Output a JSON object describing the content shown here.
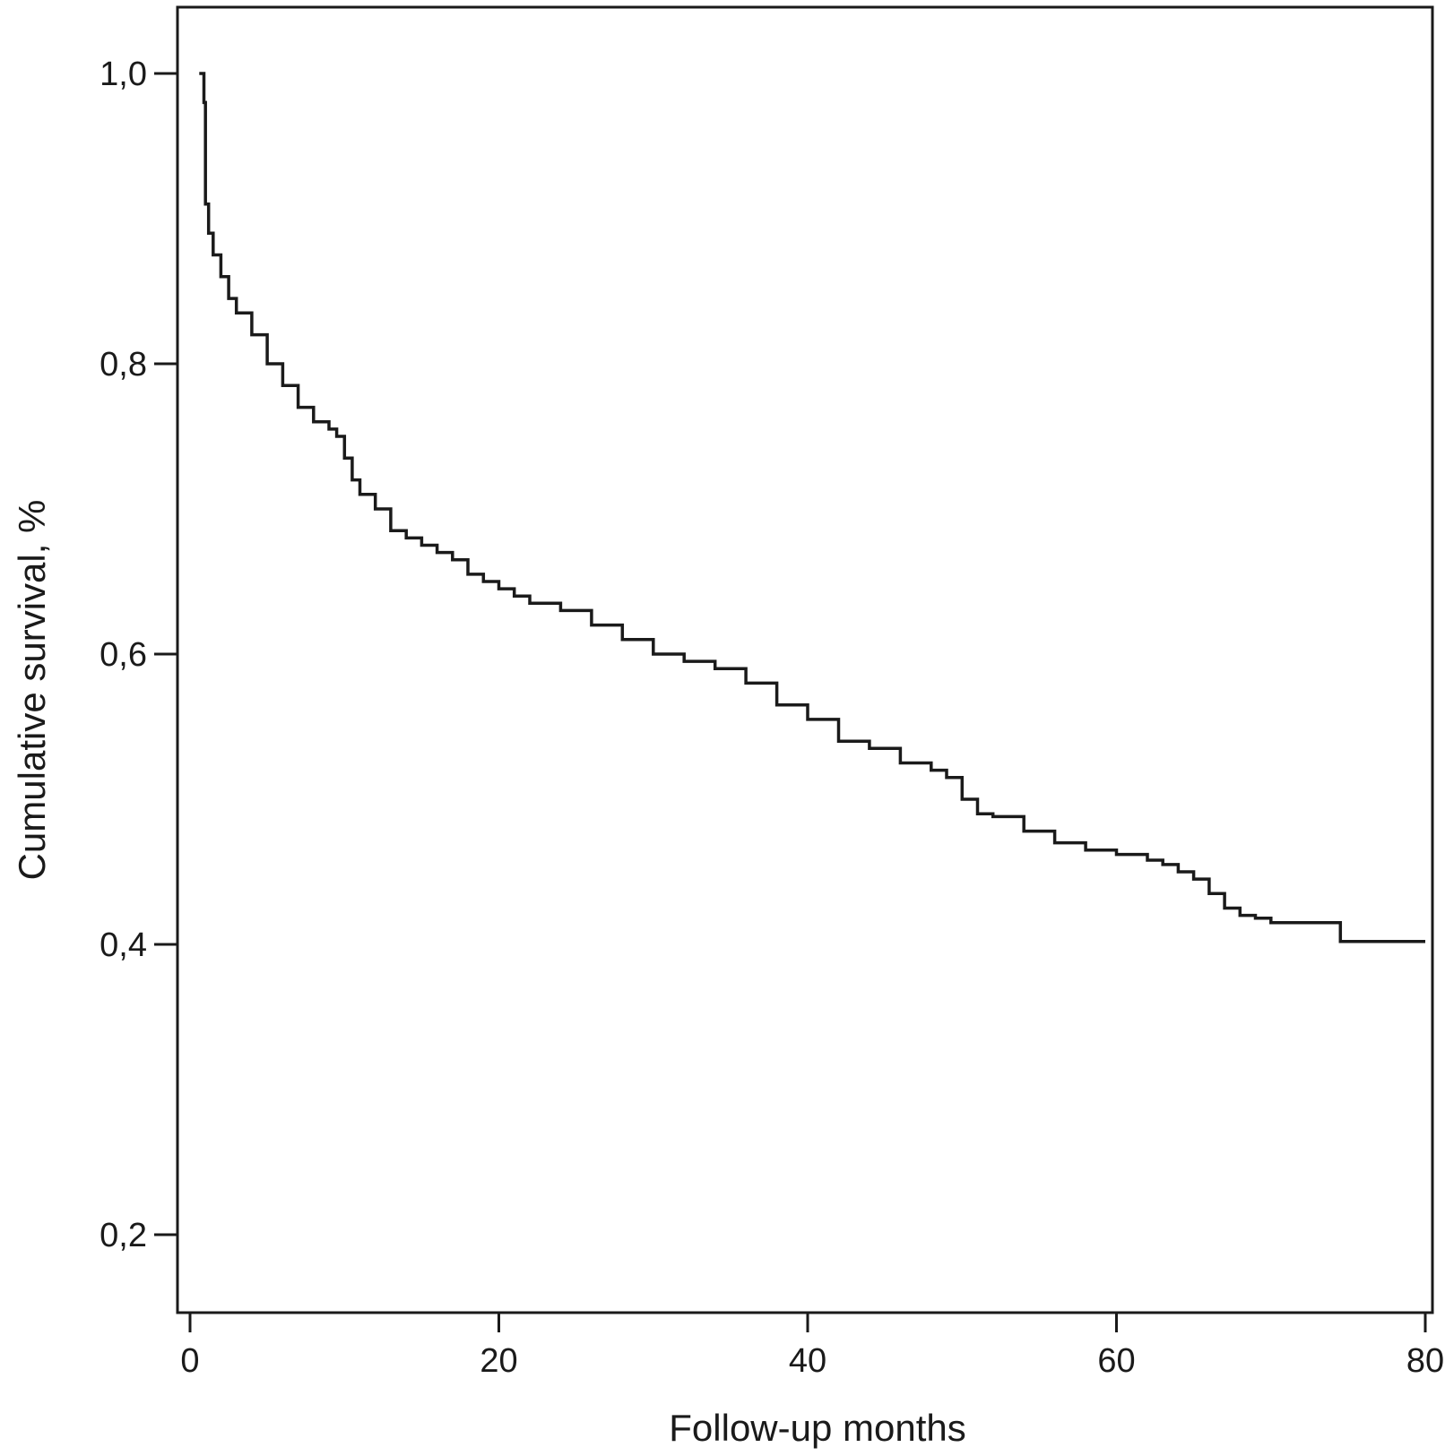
{
  "chart_data": {
    "type": "line",
    "subtype": "kaplan-meier-step",
    "title": "",
    "xlabel": "Follow-up months",
    "ylabel": "Cumulative survival, %",
    "xlim": [
      -1,
      80
    ],
    "ylim": [
      0.15,
      1.05
    ],
    "xticks": [
      0,
      20,
      40,
      60,
      80
    ],
    "xtick_labels": [
      "0",
      "20",
      "40",
      "60",
      "80"
    ],
    "yticks": [
      0.2,
      0.4,
      0.6,
      0.8,
      1.0
    ],
    "ytick_labels": [
      "0,2",
      "0,4",
      "0,6",
      "0,8",
      "1,0"
    ],
    "grid": false,
    "legend": "none",
    "line_color": "#1a1a1a",
    "series": [
      {
        "x": [
          0.6,
          0.9,
          1.0,
          1.2,
          1.5,
          2.0,
          2.5,
          3.0,
          4.0,
          5.0,
          6.0,
          7.0,
          8.0,
          9.0,
          9.5,
          10.0,
          10.5,
          11.0,
          12.0,
          13.0,
          14.0,
          15.0,
          16.0,
          17.0,
          18.0,
          19.0,
          20.0,
          21.0,
          22.0,
          24.0,
          26.0,
          28.0,
          30.0,
          32.0,
          34.0,
          36.0,
          38.0,
          40.0,
          42.0,
          44.0,
          46.0,
          48.0,
          49.0,
          50.0,
          51.0,
          52.0,
          54.0,
          56.0,
          58.0,
          60.0,
          62.0,
          63.0,
          64.0,
          65.0,
          66.0,
          67.0,
          68.0,
          69.0,
          70.0,
          72.0,
          74.0,
          74.5,
          76.0,
          78.0,
          80.0
        ],
        "y": [
          1.0,
          0.98,
          0.91,
          0.89,
          0.875,
          0.86,
          0.845,
          0.835,
          0.82,
          0.8,
          0.785,
          0.77,
          0.76,
          0.755,
          0.75,
          0.735,
          0.72,
          0.71,
          0.7,
          0.685,
          0.68,
          0.675,
          0.67,
          0.665,
          0.655,
          0.65,
          0.645,
          0.64,
          0.635,
          0.63,
          0.62,
          0.61,
          0.6,
          0.595,
          0.59,
          0.58,
          0.565,
          0.555,
          0.54,
          0.535,
          0.525,
          0.52,
          0.515,
          0.5,
          0.49,
          0.488,
          0.478,
          0.47,
          0.465,
          0.462,
          0.458,
          0.455,
          0.45,
          0.445,
          0.435,
          0.425,
          0.42,
          0.418,
          0.415,
          0.415,
          0.415,
          0.402,
          0.402,
          0.402,
          0.402
        ]
      }
    ]
  }
}
